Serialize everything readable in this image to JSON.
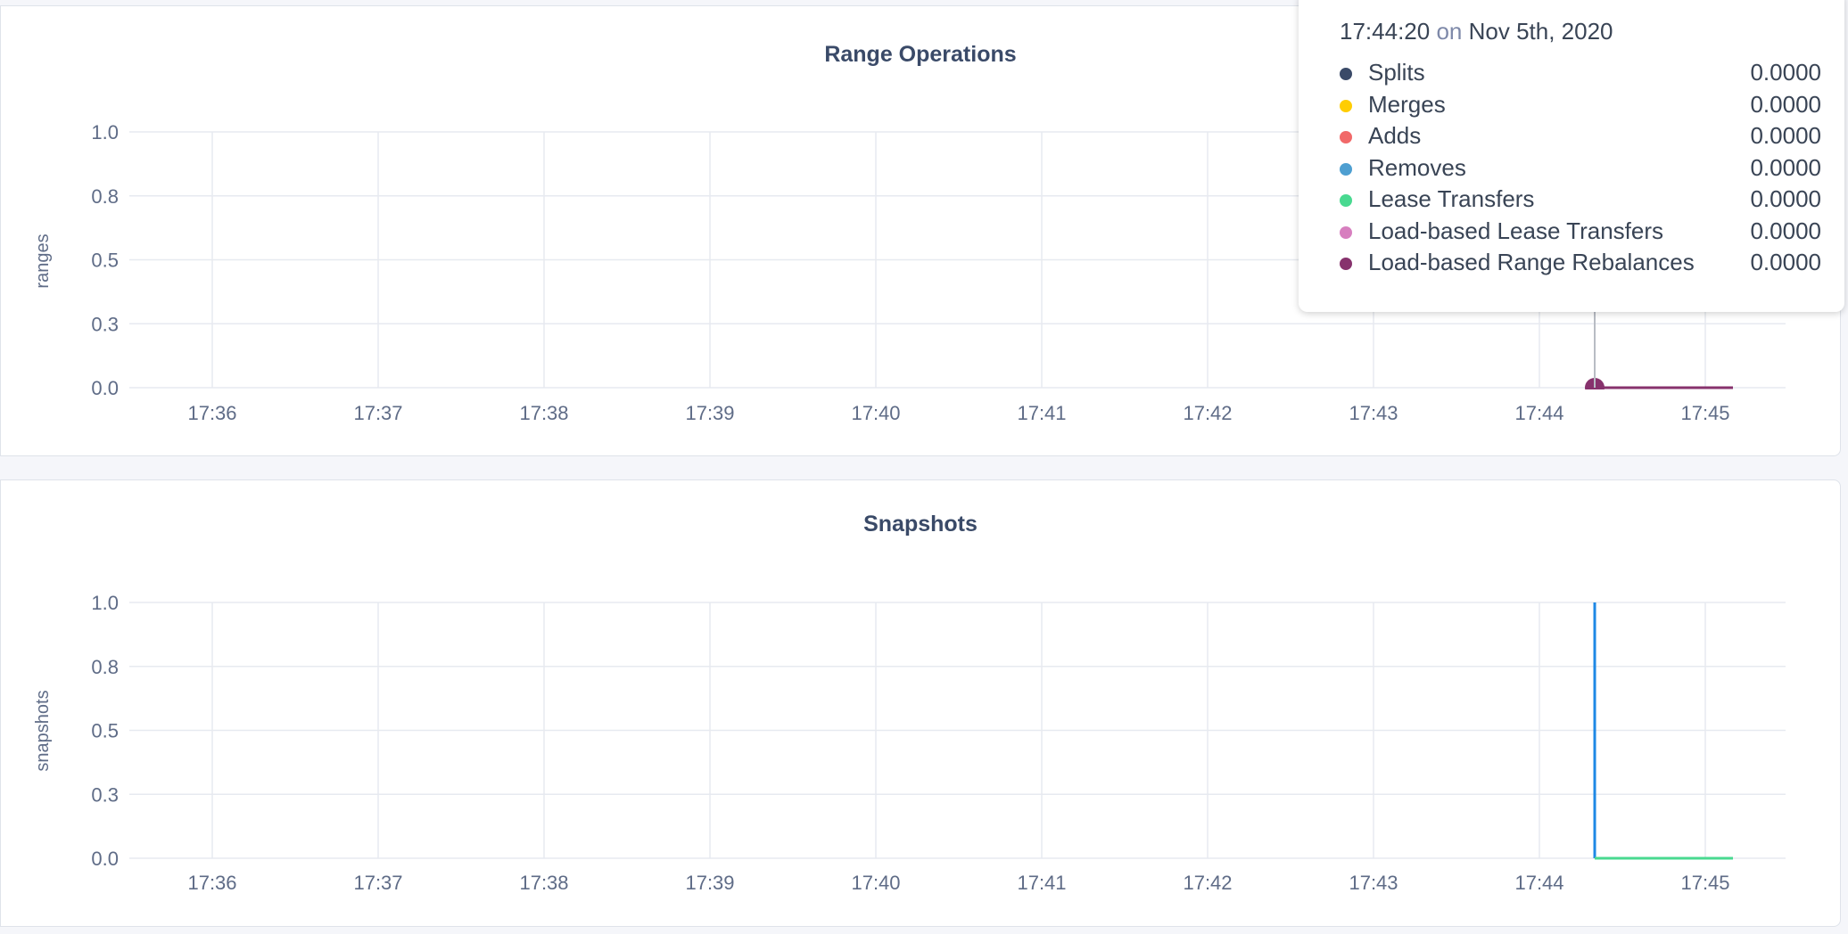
{
  "colors": {
    "background": "#f5f6fa",
    "grid": "#e7eaf0",
    "axis_text": "#5f6c87",
    "title": "#3a4a68"
  },
  "tooltip": {
    "time": "17:44:20",
    "on": "on",
    "date": "Nov 5th, 2020",
    "rows": [
      {
        "label": "Splits",
        "value": "0.0000",
        "color": "#3a4a68"
      },
      {
        "label": "Merges",
        "value": "0.0000",
        "color": "#ffcd02"
      },
      {
        "label": "Adds",
        "value": "0.0000",
        "color": "#f16969"
      },
      {
        "label": "Removes",
        "value": "0.0000",
        "color": "#4e9fd1"
      },
      {
        "label": "Lease Transfers",
        "value": "0.0000",
        "color": "#49d990"
      },
      {
        "label": "Load-based Lease Transfers",
        "value": "0.0000",
        "color": "#d77fbf"
      },
      {
        "label": "Load-based Range Rebalances",
        "value": "0.0000",
        "color": "#87326d"
      }
    ]
  },
  "chart_data": [
    {
      "type": "line",
      "title": "Range Operations",
      "ylabel": "ranges",
      "xlabel": "",
      "ylim": [
        0,
        1
      ],
      "yticks": [
        {
          "v": 0,
          "label": "0.0"
        },
        {
          "v": 0.25,
          "label": "0.3"
        },
        {
          "v": 0.5,
          "label": "0.5"
        },
        {
          "v": 0.75,
          "label": "0.8"
        },
        {
          "v": 1,
          "label": "1.0"
        }
      ],
      "xticks": [
        "17:36",
        "17:37",
        "17:38",
        "17:39",
        "17:40",
        "17:41",
        "17:42",
        "17:43",
        "17:44",
        "17:45"
      ],
      "grid": true,
      "hover_time": "17:44:20",
      "series": [
        {
          "name": "Splits",
          "color": "#3a4a68",
          "points": [
            [
              "17:44:20",
              0
            ],
            [
              "17:45:10",
              0
            ]
          ]
        },
        {
          "name": "Merges",
          "color": "#ffcd02",
          "points": [
            [
              "17:44:20",
              0
            ],
            [
              "17:45:10",
              0
            ]
          ]
        },
        {
          "name": "Adds",
          "color": "#f16969",
          "points": [
            [
              "17:44:20",
              0
            ],
            [
              "17:45:10",
              0
            ]
          ]
        },
        {
          "name": "Removes",
          "color": "#4e9fd1",
          "points": [
            [
              "17:44:20",
              0
            ],
            [
              "17:45:10",
              0
            ]
          ]
        },
        {
          "name": "Lease Transfers",
          "color": "#49d990",
          "points": [
            [
              "17:44:20",
              0
            ],
            [
              "17:45:10",
              0
            ]
          ]
        },
        {
          "name": "Load-based Lease Transfers",
          "color": "#d77fbf",
          "points": [
            [
              "17:44:20",
              0
            ],
            [
              "17:45:10",
              0
            ]
          ]
        },
        {
          "name": "Load-based Range Rebalances",
          "color": "#87326d",
          "points": [
            [
              "17:44:20",
              0
            ],
            [
              "17:45:10",
              0
            ]
          ]
        }
      ]
    },
    {
      "type": "line",
      "title": "Snapshots",
      "ylabel": "snapshots",
      "xlabel": "",
      "ylim": [
        0,
        1
      ],
      "yticks": [
        {
          "v": 0,
          "label": "0.0"
        },
        {
          "v": 0.25,
          "label": "0.3"
        },
        {
          "v": 0.5,
          "label": "0.5"
        },
        {
          "v": 0.75,
          "label": "0.8"
        },
        {
          "v": 1,
          "label": "1.0"
        }
      ],
      "xticks": [
        "17:36",
        "17:37",
        "17:38",
        "17:39",
        "17:40",
        "17:41",
        "17:42",
        "17:43",
        "17:44",
        "17:45"
      ],
      "grid": true,
      "series": [
        {
          "color": "#1e88e5",
          "points": [
            [
              "17:44:20",
              1
            ],
            [
              "17:44:20",
              0
            ]
          ]
        },
        {
          "color": "#49d990",
          "points": [
            [
              "17:44:20",
              0
            ],
            [
              "17:45:10",
              0
            ]
          ]
        }
      ]
    }
  ]
}
